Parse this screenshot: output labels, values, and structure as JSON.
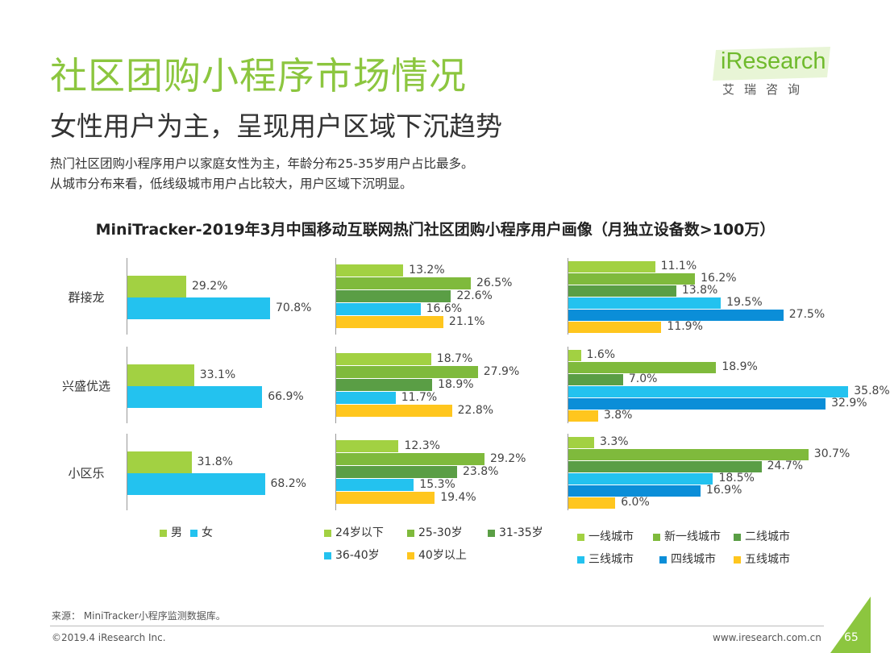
{
  "header": {
    "title": "社区团购小程序市场情况",
    "subtitle": "女性用户为主，呈现用户区域下沉趋势",
    "desc_line1": "热门社区团购小程序用户以家庭女性为主，年龄分布25-35岁用户占比最多。",
    "desc_line2": "从城市分布来看，低线级城市用户占比较大，用户区域下沉明显。"
  },
  "logo": {
    "wordmark": "iResearch",
    "cn": "艾瑞咨询"
  },
  "colors": {
    "light_green": "#a2d142",
    "mid_green": "#7fba3c",
    "dark_green": "#5a9e45",
    "cyan": "#23c2ef",
    "blue": "#0b8ed8",
    "yellow": "#ffc61e",
    "title_green": "#8cc63f"
  },
  "chart_data": [
    {
      "type": "bar",
      "orientation": "horizontal",
      "title": "MiniTracker-2019年3月中国移动互联网热门社区团购小程序用户画像（月独立设备数>100万）",
      "panel": "gender",
      "categories": [
        "群接龙",
        "兴盛优选",
        "小区乐"
      ],
      "series": [
        {
          "name": "男",
          "color": "#a2d142",
          "values": [
            29.2,
            33.1,
            31.8
          ]
        },
        {
          "name": "女",
          "color": "#23c2ef",
          "values": [
            70.8,
            66.9,
            68.2
          ]
        }
      ],
      "unit": "%"
    },
    {
      "type": "bar",
      "orientation": "horizontal",
      "panel": "age",
      "categories": [
        "群接龙",
        "兴盛优选",
        "小区乐"
      ],
      "series": [
        {
          "name": "24岁以下",
          "color": "#a2d142",
          "values": [
            13.2,
            18.7,
            12.3
          ]
        },
        {
          "name": "25-30岁",
          "color": "#7fba3c",
          "values": [
            26.5,
            27.9,
            29.2
          ]
        },
        {
          "name": "31-35岁",
          "color": "#5a9e45",
          "values": [
            22.6,
            18.9,
            23.8
          ]
        },
        {
          "name": "36-40岁",
          "color": "#23c2ef",
          "values": [
            16.6,
            11.7,
            15.3
          ]
        },
        {
          "name": "40岁以上",
          "color": "#ffc61e",
          "values": [
            21.1,
            22.8,
            19.4
          ]
        }
      ],
      "unit": "%"
    },
    {
      "type": "bar",
      "orientation": "horizontal",
      "panel": "city",
      "categories": [
        "群接龙",
        "兴盛优选",
        "小区乐"
      ],
      "series": [
        {
          "name": "一线城市",
          "color": "#a2d142",
          "values": [
            11.1,
            1.6,
            3.3
          ]
        },
        {
          "name": "新一线城市",
          "color": "#7fba3c",
          "values": [
            16.2,
            18.9,
            30.7
          ]
        },
        {
          "name": "二线城市",
          "color": "#5a9e45",
          "values": [
            13.8,
            7.0,
            24.7
          ]
        },
        {
          "name": "三线城市",
          "color": "#23c2ef",
          "values": [
            19.5,
            35.8,
            18.5
          ]
        },
        {
          "name": "四线城市",
          "color": "#0b8ed8",
          "values": [
            27.5,
            32.9,
            16.9
          ]
        },
        {
          "name": "五线城市",
          "color": "#ffc61e",
          "values": [
            11.9,
            3.8,
            6.0
          ]
        }
      ],
      "unit": "%"
    }
  ],
  "footer": {
    "source": "来源：  MiniTracker小程序监测数据库。",
    "copyright": "©2019.4 iResearch Inc.",
    "website": "www.iresearch.com.cn",
    "page_number": "65"
  }
}
